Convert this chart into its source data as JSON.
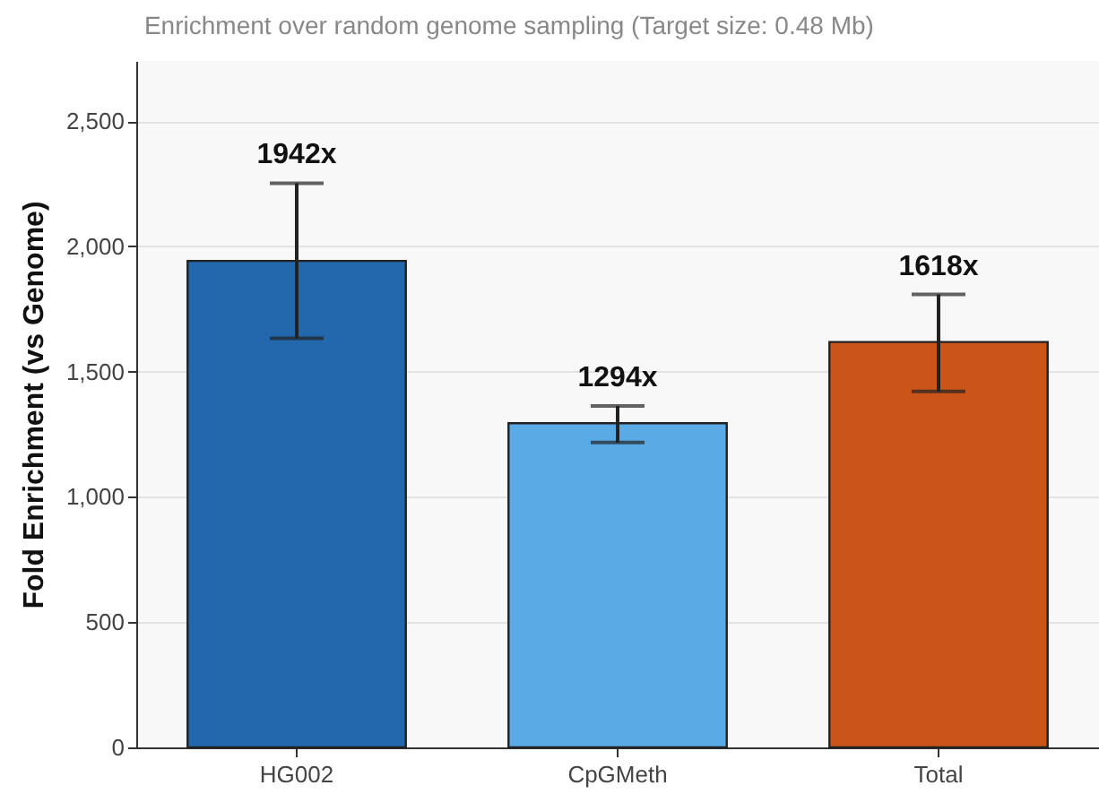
{
  "chart_data": {
    "type": "bar",
    "title": "Enrichment over random genome sampling (Target size: 0.48 Mb)",
    "ylabel": "Fold Enrichment (vs Genome)",
    "categories": [
      "HG002",
      "CpGMeth",
      "Total"
    ],
    "values": [
      1942,
      1294,
      1618
    ],
    "colors": [
      "#2368ac",
      "#5aaae6",
      "#cb5518"
    ],
    "errors": [
      [
        1633,
        2252
      ],
      [
        1217,
        1363
      ],
      [
        1421,
        1808
      ]
    ],
    "value_labels": [
      "1942x",
      "1294x",
      "1618x"
    ],
    "ylim": [
      0,
      2740
    ],
    "yticks": [
      {
        "value": 0,
        "label": "0"
      },
      {
        "value": 500,
        "label": "500"
      },
      {
        "value": 1000,
        "label": "1,000"
      },
      {
        "value": 1500,
        "label": "1,500"
      },
      {
        "value": 2000,
        "label": "2,000"
      },
      {
        "value": 2500,
        "label": "2,500"
      }
    ],
    "grid": "y"
  }
}
